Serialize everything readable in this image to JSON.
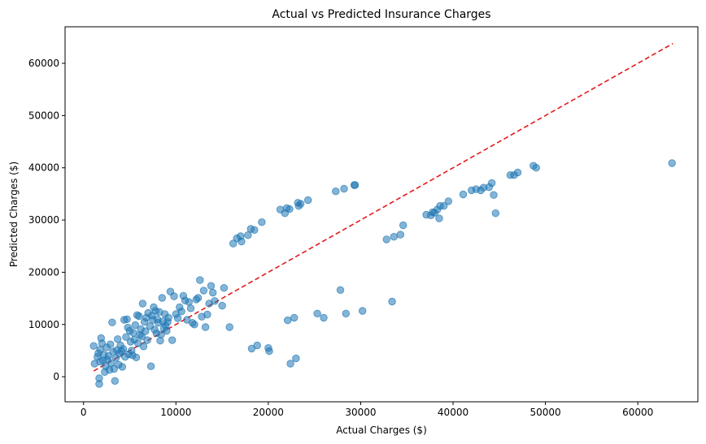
{
  "chart_data": {
    "type": "scatter",
    "title": "Actual vs Predicted Insurance Charges",
    "xlabel": "Actual Charges ($)",
    "ylabel": "Predicted Charges ($)",
    "xlim": [
      -2000,
      66500
    ],
    "ylim": [
      -4800,
      67000
    ],
    "xticks": [
      0,
      10000,
      20000,
      30000,
      40000,
      50000,
      60000
    ],
    "yticks": [
      0,
      10000,
      20000,
      30000,
      40000,
      50000,
      60000
    ],
    "xtick_labels": [
      "0",
      "10000",
      "20000",
      "30000",
      "40000",
      "50000",
      "60000"
    ],
    "ytick_labels": [
      "0",
      "10000",
      "20000",
      "30000",
      "40000",
      "50000",
      "60000"
    ],
    "grid": false,
    "point_color": "#1f77b4",
    "point_alpha": 0.55,
    "reference_line": {
      "from": [
        1100,
        1100
      ],
      "to": [
        63800,
        63800
      ],
      "color": "#e41a1c",
      "style": "dashed"
    },
    "points": [
      [
        1100,
        5900
      ],
      [
        1200,
        2500
      ],
      [
        1500,
        3800
      ],
      [
        1600,
        4500
      ],
      [
        1700,
        -1400
      ],
      [
        1700,
        -300
      ],
      [
        1800,
        2900
      ],
      [
        1800,
        5200
      ],
      [
        1900,
        7400
      ],
      [
        2000,
        6400
      ],
      [
        2100,
        3100
      ],
      [
        2200,
        4200
      ],
      [
        2300,
        900
      ],
      [
        2400,
        2000
      ],
      [
        2500,
        5600
      ],
      [
        2600,
        3300
      ],
      [
        2700,
        4000
      ],
      [
        2800,
        1300
      ],
      [
        2900,
        6200
      ],
      [
        3000,
        2600
      ],
      [
        3100,
        10400
      ],
      [
        3200,
        4800
      ],
      [
        3300,
        1500
      ],
      [
        3400,
        -800
      ],
      [
        3500,
        3600
      ],
      [
        3600,
        5100
      ],
      [
        3700,
        7200
      ],
      [
        3800,
        2300
      ],
      [
        3900,
        4400
      ],
      [
        4000,
        6000
      ],
      [
        4100,
        4900
      ],
      [
        4200,
        1900
      ],
      [
        4300,
        5300
      ],
      [
        4400,
        10900
      ],
      [
        4500,
        3800
      ],
      [
        4600,
        7600
      ],
      [
        4700,
        11000
      ],
      [
        4800,
        9400
      ],
      [
        4900,
        4300
      ],
      [
        5000,
        8800
      ],
      [
        5100,
        6700
      ],
      [
        5200,
        5000
      ],
      [
        5300,
        4100
      ],
      [
        5400,
        8400
      ],
      [
        5500,
        7100
      ],
      [
        5600,
        9900
      ],
      [
        5700,
        3700
      ],
      [
        5800,
        11800
      ],
      [
        5900,
        6400
      ],
      [
        6000,
        11600
      ],
      [
        6100,
        8000
      ],
      [
        6200,
        9100
      ],
      [
        6300,
        7700
      ],
      [
        6400,
        14000
      ],
      [
        6500,
        5800
      ],
      [
        6600,
        10500
      ],
      [
        6700,
        8700
      ],
      [
        6800,
        11300
      ],
      [
        6900,
        7000
      ],
      [
        7000,
        12200
      ],
      [
        7200,
        9700
      ],
      [
        7300,
        2000
      ],
      [
        7400,
        11700
      ],
      [
        7500,
        10900
      ],
      [
        7600,
        13300
      ],
      [
        7700,
        9000
      ],
      [
        7800,
        12600
      ],
      [
        7900,
        8300
      ],
      [
        8000,
        11000
      ],
      [
        8100,
        10300
      ],
      [
        8200,
        12400
      ],
      [
        8300,
        6900
      ],
      [
        8400,
        8100
      ],
      [
        8500,
        15100
      ],
      [
        8600,
        10600
      ],
      [
        8700,
        9300
      ],
      [
        8800,
        12000
      ],
      [
        8900,
        9800
      ],
      [
        9000,
        8800
      ],
      [
        9100,
        10500
      ],
      [
        9200,
        11300
      ],
      [
        9400,
        16300
      ],
      [
        9600,
        7000
      ],
      [
        9800,
        15400
      ],
      [
        10000,
        12000
      ],
      [
        10200,
        11200
      ],
      [
        10400,
        13300
      ],
      [
        10600,
        12500
      ],
      [
        10800,
        15500
      ],
      [
        11000,
        14600
      ],
      [
        11200,
        10900
      ],
      [
        11400,
        14300
      ],
      [
        11600,
        13100
      ],
      [
        11800,
        10300
      ],
      [
        12000,
        10000
      ],
      [
        12200,
        14800
      ],
      [
        12400,
        15100
      ],
      [
        12600,
        18500
      ],
      [
        12800,
        11500
      ],
      [
        13000,
        16500
      ],
      [
        13200,
        9500
      ],
      [
        13400,
        11900
      ],
      [
        13600,
        14000
      ],
      [
        13800,
        17400
      ],
      [
        14000,
        16100
      ],
      [
        14200,
        14500
      ],
      [
        15000,
        13600
      ],
      [
        15200,
        17000
      ],
      [
        15800,
        9500
      ],
      [
        16200,
        25500
      ],
      [
        16600,
        26500
      ],
      [
        17000,
        26900
      ],
      [
        17100,
        25900
      ],
      [
        17800,
        27100
      ],
      [
        18100,
        28300
      ],
      [
        18200,
        5400
      ],
      [
        18500,
        28100
      ],
      [
        18800,
        6000
      ],
      [
        19300,
        29600
      ],
      [
        20000,
        5500
      ],
      [
        20100,
        4900
      ],
      [
        21300,
        32000
      ],
      [
        21800,
        31300
      ],
      [
        22000,
        32300
      ],
      [
        22100,
        10800
      ],
      [
        22300,
        32100
      ],
      [
        22400,
        2500
      ],
      [
        22800,
        11300
      ],
      [
        23000,
        3500
      ],
      [
        23200,
        33300
      ],
      [
        23300,
        32700
      ],
      [
        23500,
        33100
      ],
      [
        24300,
        33800
      ],
      [
        25300,
        12100
      ],
      [
        26000,
        11300
      ],
      [
        27300,
        35500
      ],
      [
        27800,
        16600
      ],
      [
        28200,
        36000
      ],
      [
        28400,
        12100
      ],
      [
        29300,
        36700
      ],
      [
        29400,
        36700
      ],
      [
        30200,
        12600
      ],
      [
        32800,
        26300
      ],
      [
        33400,
        14400
      ],
      [
        33600,
        26800
      ],
      [
        34300,
        27200
      ],
      [
        34600,
        29000
      ],
      [
        37100,
        31000
      ],
      [
        37600,
        30900
      ],
      [
        37800,
        31500
      ],
      [
        38000,
        31400
      ],
      [
        38300,
        32000
      ],
      [
        38500,
        30300
      ],
      [
        38600,
        32700
      ],
      [
        39000,
        32700
      ],
      [
        39500,
        33600
      ],
      [
        41100,
        34900
      ],
      [
        42000,
        35700
      ],
      [
        42500,
        35900
      ],
      [
        43000,
        35700
      ],
      [
        43300,
        36200
      ],
      [
        43900,
        36300
      ],
      [
        44200,
        37100
      ],
      [
        44400,
        34800
      ],
      [
        44600,
        31300
      ],
      [
        46200,
        38600
      ],
      [
        46600,
        38600
      ],
      [
        47000,
        39100
      ],
      [
        48700,
        40400
      ],
      [
        49000,
        40000
      ],
      [
        63700,
        40900
      ]
    ]
  }
}
